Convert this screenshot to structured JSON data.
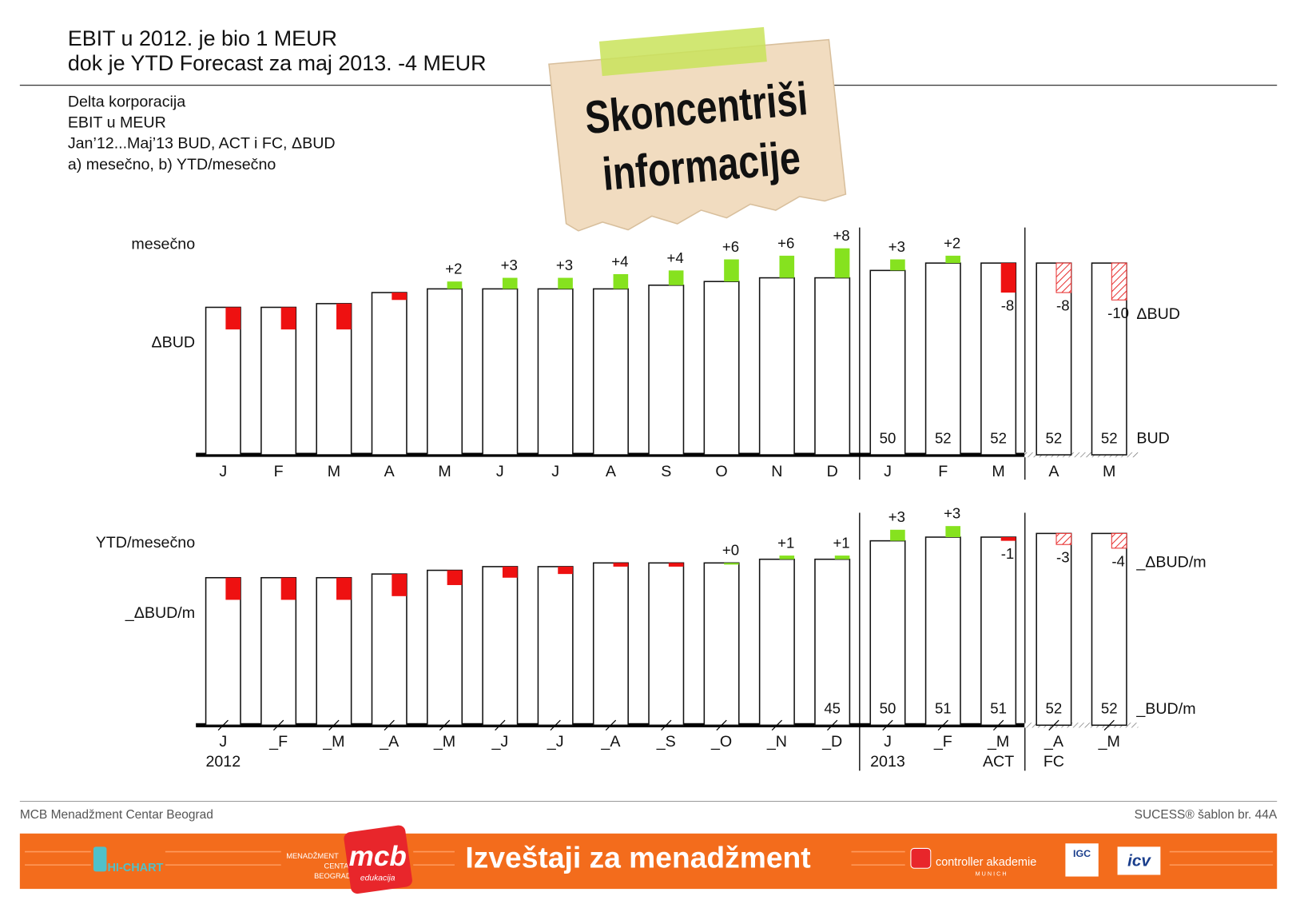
{
  "header": {
    "title_lines": [
      "EBIT u 2012. je bio 1 MEUR",
      "dok je YTD Forecast za maj 2013. -4 MEUR"
    ],
    "subtitle_lines": [
      "Delta korporacija",
      "EBIT u MEUR",
      "Jan’12...Maj’13 BUD, ACT i FC, ΔBUD",
      "a) mesečno, b) YTD/mesečno"
    ]
  },
  "note": {
    "lines": [
      "Skoncentriši",
      "informacije"
    ]
  },
  "chart_data": [
    {
      "type": "bar",
      "title": "mesečno",
      "y_label": "ΔBUD",
      "categories": [
        "J",
        "F",
        "M",
        "A",
        "M",
        "J",
        "J",
        "A",
        "S",
        "O",
        "N",
        "D",
        "J",
        "F",
        "M",
        "A",
        "M"
      ],
      "hatched": [
        false,
        false,
        false,
        false,
        false,
        false,
        false,
        false,
        false,
        false,
        false,
        false,
        false,
        false,
        false,
        true,
        true
      ],
      "series": [
        {
          "name": "BUD",
          "color": "#ffffff",
          "values": [
            40,
            40,
            41,
            44,
            45,
            45,
            45,
            45,
            46,
            47,
            48,
            48,
            50,
            52,
            52,
            52,
            52
          ],
          "value_labels": [
            null,
            null,
            null,
            null,
            null,
            null,
            null,
            null,
            null,
            null,
            null,
            null,
            "50",
            "52",
            "52",
            "52",
            "52"
          ]
        },
        {
          "name": "ΔBUD",
          "positive_color": "#86e21f",
          "negative_color": "#ee1111",
          "values": [
            -6,
            -6,
            -7,
            -2,
            2,
            3,
            3,
            4,
            4,
            6,
            6,
            8,
            3,
            2,
            -8,
            -8,
            -10
          ],
          "value_labels": [
            null,
            null,
            null,
            null,
            "+2",
            "+3",
            "+3",
            "+4",
            "+4",
            "+6",
            "+6",
            "+8",
            "+3",
            "+2",
            "-8",
            "-8",
            "-10"
          ]
        }
      ]
    },
    {
      "type": "bar",
      "title": "YTD/mesečno",
      "y_label": "_ΔBUD/m",
      "categories": [
        "J",
        "_F",
        "_M",
        "_A",
        "_M",
        "_J",
        "_J",
        "_A",
        "_S",
        "_O",
        "_N",
        "_D",
        "J",
        "_F",
        "_M",
        "_A",
        "_M"
      ],
      "group_labels": [
        "2012",
        null,
        null,
        null,
        null,
        null,
        null,
        null,
        null,
        null,
        null,
        null,
        "2013",
        null,
        "ACT",
        "FC",
        null
      ],
      "hatched": [
        false,
        false,
        false,
        false,
        false,
        false,
        false,
        false,
        false,
        false,
        false,
        false,
        false,
        false,
        false,
        true,
        true
      ],
      "series": [
        {
          "name": "_BUD/m",
          "color": "#ffffff",
          "values": [
            40,
            40,
            40,
            41,
            42,
            43,
            43,
            44,
            44,
            44,
            45,
            45,
            50,
            51,
            51,
            52,
            52
          ],
          "value_labels": [
            null,
            null,
            null,
            null,
            null,
            null,
            null,
            null,
            null,
            null,
            null,
            "45",
            "50",
            "51",
            "51",
            "52",
            "52"
          ]
        },
        {
          "name": "_ΔBUD/m",
          "positive_color": "#86e21f",
          "negative_color": "#ee1111",
          "values": [
            -6,
            -6,
            -6,
            -6,
            -4,
            -3,
            -2,
            -1,
            -1,
            0,
            1,
            1,
            3,
            3,
            -1,
            -3,
            -4
          ],
          "value_labels": [
            null,
            null,
            null,
            null,
            null,
            null,
            null,
            null,
            null,
            "+0",
            "+1",
            "+1",
            "+3",
            "+3",
            "-1",
            "-3",
            "-4"
          ]
        }
      ]
    }
  ],
  "footer": {
    "left": "MCB Menadžment Centar Beograd",
    "right": "SUCESS® šablon br. 44A"
  },
  "banner": {
    "title": "Izveštaji za menadžment",
    "hichart": "HI-CHART",
    "mcb_small": [
      "MENADŽMENT",
      "CENTAR",
      "BEOGRAD"
    ],
    "mcb": "mcb",
    "mcb_sub": "edukacija",
    "ca": "controller akademie",
    "ca_sub": "M U N I C H",
    "igc": "IGC",
    "icv": "icv"
  }
}
